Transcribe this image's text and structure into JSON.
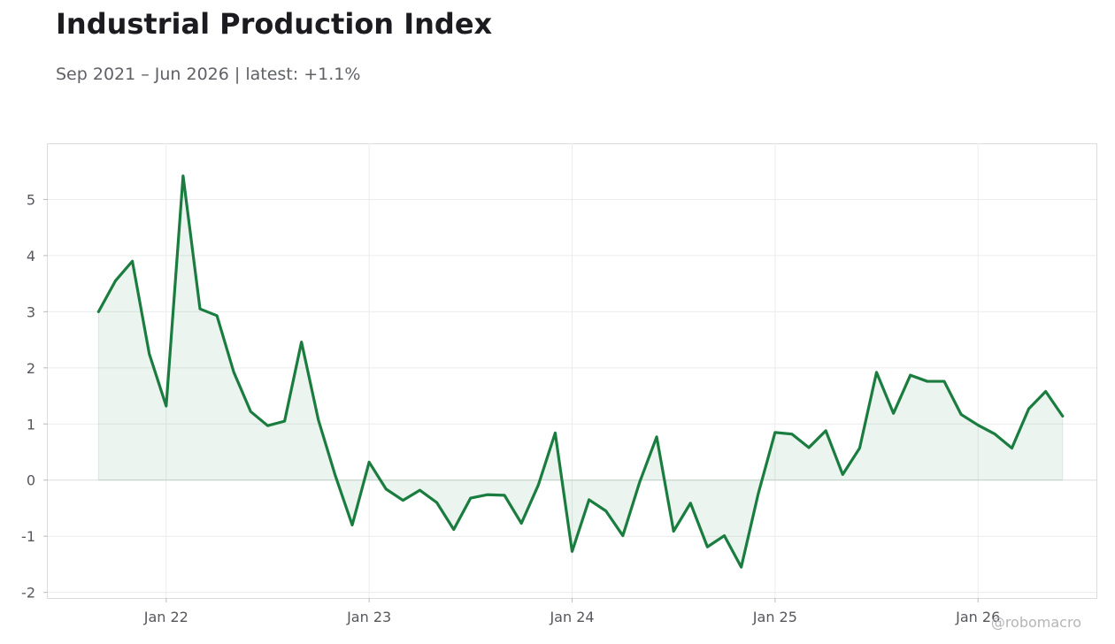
{
  "title": "Industrial Production Index",
  "subtitle": "Sep 2021 – Jun 2026 | latest: +1.1%",
  "watermark": "@robomacro",
  "colors": {
    "line": "#1a7d3f",
    "fill": "#1a7d3f",
    "grid": "#ececec",
    "frame": "#dcdcdc",
    "zero": "#e2e2e2"
  },
  "chart_data": {
    "type": "area",
    "title": "Industrial Production Index",
    "subtitle": "Sep 2021 – Jun 2026 | latest: +1.1%",
    "xlabel": "",
    "ylabel": "",
    "ylim": [
      -2.1,
      6.0
    ],
    "yticks": [
      -2,
      -1,
      0,
      1,
      2,
      3,
      4,
      5
    ],
    "ytick_labels": [
      "-2",
      "-1",
      "0",
      "1",
      "2",
      "3",
      "4",
      "5"
    ],
    "xticks": [
      "2022-01",
      "2023-01",
      "2024-01",
      "2025-01",
      "2026-01"
    ],
    "xtick_labels": [
      "Jan 22",
      "Jan 23",
      "Jan 24",
      "Jan 25",
      "Jan 26"
    ],
    "xlim": [
      "2021-06",
      "2026-08"
    ],
    "grid": true,
    "legend": "none",
    "series": [
      {
        "x": [
          "2021-09",
          "2021-10",
          "2021-11",
          "2021-12",
          "2022-01",
          "2022-02",
          "2022-03",
          "2022-04",
          "2022-05",
          "2022-06",
          "2022-07",
          "2022-08",
          "2022-09",
          "2022-10",
          "2022-11",
          "2022-12",
          "2023-01",
          "2023-02",
          "2023-03",
          "2023-04",
          "2023-05",
          "2023-06",
          "2023-07",
          "2023-08",
          "2023-09",
          "2023-10",
          "2023-11",
          "2023-12",
          "2024-01",
          "2024-02",
          "2024-03",
          "2024-04",
          "2024-05",
          "2024-06",
          "2024-07",
          "2024-08",
          "2024-09",
          "2024-10",
          "2024-11",
          "2024-12",
          "2025-01",
          "2025-02",
          "2025-03",
          "2025-04",
          "2025-05",
          "2025-06",
          "2025-07",
          "2025-08",
          "2025-09",
          "2025-10",
          "2025-11",
          "2025-12",
          "2026-01",
          "2026-02",
          "2026-03",
          "2026-04",
          "2026-05",
          "2026-06"
        ],
        "values": [
          3.0,
          3.55,
          3.9,
          2.25,
          1.32,
          5.42,
          3.05,
          2.93,
          1.92,
          1.22,
          0.97,
          1.05,
          2.46,
          1.07,
          0.08,
          -0.8,
          0.32,
          -0.16,
          -0.36,
          -0.18,
          -0.4,
          -0.88,
          -0.32,
          -0.26,
          -0.27,
          -0.77,
          -0.09,
          0.84,
          -1.27,
          -0.35,
          -0.55,
          -0.99,
          -0.03,
          0.77,
          -0.91,
          -0.41,
          -1.19,
          -0.99,
          -1.55,
          -0.25,
          0.85,
          0.82,
          0.58,
          0.88,
          0.1,
          0.57,
          1.92,
          1.19,
          1.87,
          1.76,
          1.76,
          1.17,
          0.98,
          0.82,
          0.57,
          1.27,
          1.58,
          1.14
        ]
      }
    ]
  }
}
